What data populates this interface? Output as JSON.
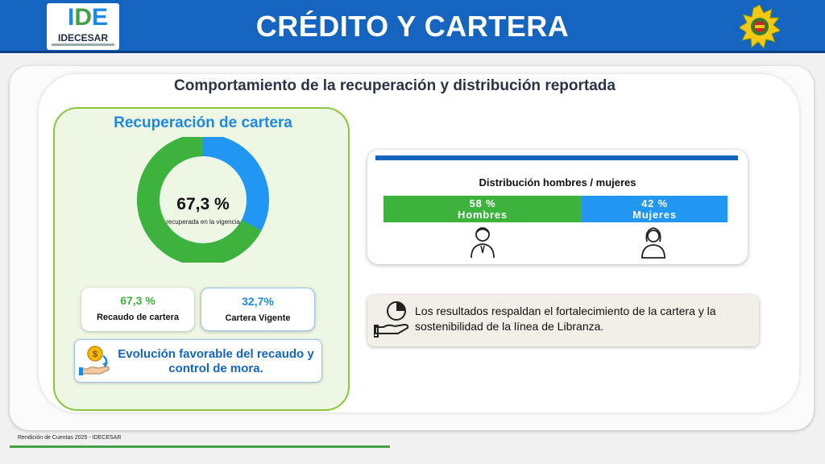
{
  "header": {
    "title": "CRÉDITO Y CARTERA",
    "logo_text": "IDECESAR",
    "accent_color": "#1565c0"
  },
  "main_title": "Comportamiento de la recuperación y distribución reportada",
  "recuperacion": {
    "title": "Recuperación de cartera",
    "donut_value": "67,3 %",
    "donut_caption": "recuperada en la vigencia",
    "recovered_fraction": 0.673,
    "recovered_color": "#3db33d",
    "current_color": "#2196f3",
    "recaudo": {
      "value": "67,3 %",
      "label": "Recaudo de cartera"
    },
    "vigente": {
      "value": "32,7%",
      "label": "Cartera Vigente"
    },
    "favorable_text": "Evolución favorable del recaudo y control de mora."
  },
  "distribucion": {
    "title": "Distribución hombres / mujeres",
    "hombres": {
      "pct": "58 %",
      "label": "Hombres"
    },
    "mujeres": {
      "pct": "42 %",
      "label": "Mujeres"
    }
  },
  "resultados_text": "Los resultados respaldan el fortalecimiento de la cartera y la sostenibilidad de la línea de Libranza.",
  "footer": {
    "text": "Rendición de Cuentas 2025 - IDECESAR"
  }
}
